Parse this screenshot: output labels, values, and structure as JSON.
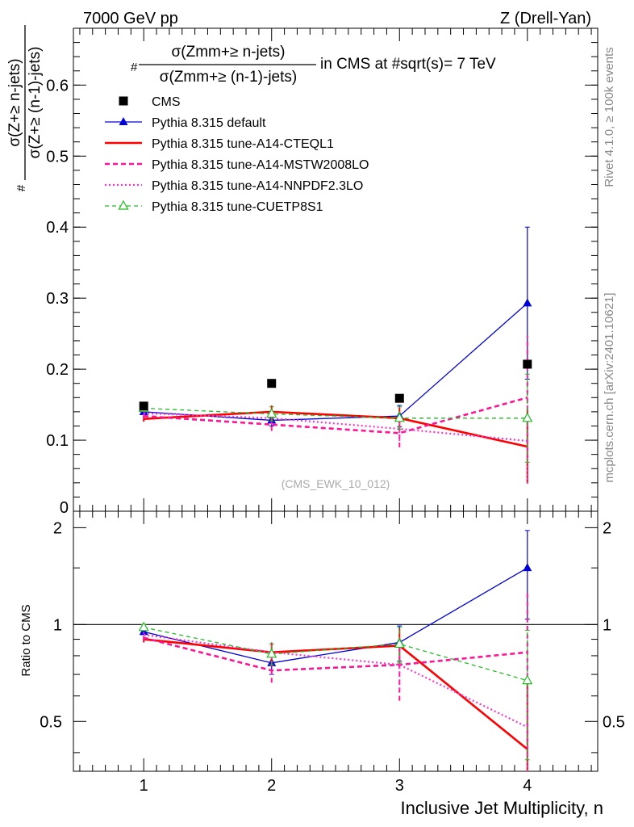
{
  "header": {
    "left": "7000 GeV pp",
    "right": "Z (Drell-Yan)"
  },
  "side_labels": {
    "rivet": "Rivet 4.1.0, ≥ 100k events",
    "mcplots": "mcplots.cern.ch [arXiv:2401.10621]"
  },
  "title": {
    "hash": "#",
    "numerator": "σ(Zmm+≥ n-jets)",
    "denominator": "σ(Zmm+≥ (n-1)-jets)",
    "suffix": "in CMS at #sqrt(s)= 7 TeV"
  },
  "analysis_tag": "(CMS_EWK_10_012)",
  "chart_data": [
    {
      "type": "line",
      "panel": "main",
      "xlabel": "Inclusive Jet Multiplicity, n",
      "ylabel": {
        "hash": "#",
        "numerator": "σ(Z+≥ n-jets)",
        "denominator": "σ(Z+≥ (n-1)-jets)"
      },
      "xlim": [
        0.45,
        4.55
      ],
      "ylim": [
        0,
        0.68
      ],
      "yticks": [
        0,
        0.1,
        0.2,
        0.3,
        0.4,
        0.5,
        0.6
      ],
      "ytick_labels": [
        "0",
        "0.1",
        "0.2",
        "0.3",
        "0.4",
        "0.5",
        "0.6"
      ],
      "x": [
        1,
        2,
        3,
        4
      ],
      "series": [
        {
          "name": "CMS",
          "color": "#000000",
          "style": "marker-square",
          "values": [
            0.148,
            0.18,
            0.159,
            0.207
          ]
        },
        {
          "name": "Pythia 8.315 default",
          "color": "#0000dd",
          "style": "solid-triangle",
          "values": [
            0.14,
            0.128,
            0.134,
            0.293
          ],
          "err": [
            0.004,
            0.008,
            0.015,
            0.107
          ]
        },
        {
          "name": "Pythia 8.315 tune-A14-CTEQL1",
          "color": "#ff0000",
          "style": "solid-thick",
          "values": [
            0.13,
            0.14,
            0.131,
            0.091
          ],
          "err": [
            0.004,
            0.009,
            0.016,
            0.052
          ]
        },
        {
          "name": "Pythia 8.315 tune-A14-MSTW2008LO",
          "color": "#ff1493",
          "style": "dashed",
          "values": [
            0.134,
            0.122,
            0.11,
            0.16
          ],
          "err": [
            0.004,
            0.009,
            0.02,
            0.087
          ]
        },
        {
          "name": "Pythia 8.315 tune-A14-NNPDF2.3LO",
          "color": "#ff33cc",
          "style": "dotted",
          "values": [
            0.138,
            0.131,
            0.116,
            0.099
          ],
          "err": [
            0.004,
            0.009,
            0.017,
            0.06
          ]
        },
        {
          "name": "Pythia 8.315 tune-CUETP8S1",
          "color": "#22bb22",
          "style": "dashed-triangle-open",
          "values": [
            0.145,
            0.137,
            0.131,
            0.131
          ],
          "err": [
            0.004,
            0.01,
            0.016,
            0.062
          ]
        }
      ]
    },
    {
      "type": "line",
      "panel": "ratio",
      "ylabel": "Ratio to CMS",
      "xlabel": "Inclusive Jet Multiplicity, n",
      "xlim": [
        0.45,
        4.55
      ],
      "ylim": [
        0.35,
        2.25
      ],
      "yscale": "log",
      "yticks": [
        0.5,
        1,
        2
      ],
      "ytick_labels": [
        "0.5",
        "1",
        "2"
      ],
      "xticks": [
        1,
        2,
        3,
        4
      ],
      "xtick_labels": [
        "1",
        "2",
        "3",
        "4"
      ],
      "reference_line": 1,
      "x": [
        1,
        2,
        3,
        4
      ],
      "series": [
        {
          "name": "Pythia 8.315 default",
          "values": [
            0.95,
            0.76,
            0.88,
            1.5
          ],
          "err": [
            0.02,
            0.06,
            0.11,
            0.46
          ]
        },
        {
          "name": "Pythia 8.315 tune-A14-CTEQL1",
          "values": [
            0.9,
            0.82,
            0.86,
            0.41
          ],
          "err": [
            0.02,
            0.06,
            0.11,
            0.26
          ]
        },
        {
          "name": "Pythia 8.315 tune-A14-MSTW2008LO",
          "values": [
            0.91,
            0.72,
            0.75,
            0.82
          ],
          "err": [
            0.02,
            0.06,
            0.17,
            0.44
          ]
        },
        {
          "name": "Pythia 8.315 tune-A14-NNPDF2.3LO",
          "values": [
            0.93,
            0.82,
            0.75,
            0.48
          ],
          "err": [
            0.02,
            0.06,
            0.12,
            0.29
          ]
        },
        {
          "name": "Pythia 8.315 tune-CUETP8S1",
          "values": [
            0.98,
            0.81,
            0.87,
            0.67
          ],
          "err": [
            0.02,
            0.06,
            0.11,
            0.29
          ]
        }
      ]
    }
  ]
}
